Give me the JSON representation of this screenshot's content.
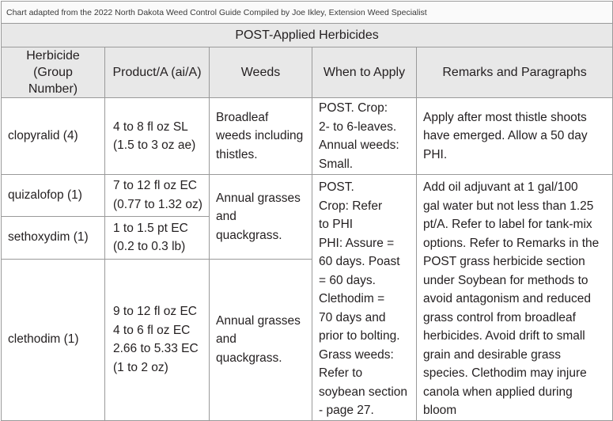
{
  "source_note": "Chart adapted from the 2022 North Dakota Weed Control Guide Compiled by Joe Ikley, Extension Weed Specialist",
  "section_title": "POST-Applied Herbicides",
  "headers": {
    "herbicide_line1": "Herbicide",
    "herbicide_line2": "(Group Number)",
    "product": "Product/A (ai/A)",
    "weeds": "Weeds",
    "when": "When to Apply",
    "remarks": "Remarks and Paragraphs"
  },
  "rows": {
    "clopyralid": {
      "herbicide": "clopyralid (4)",
      "product_line1": "4 to 8 fl oz SL",
      "product_line2": "(1.5 to 3 oz ae)",
      "weeds_line1": "Broadleaf",
      "weeds_line2": "weeds including",
      "weeds_line3": "thistles.",
      "when_line1": "POST. Crop:",
      "when_line2": "2- to 6-leaves.",
      "when_line3": "Annual weeds:",
      "when_line4": "Small.",
      "remarks_line1": "Apply after most thistle shoots",
      "remarks_line2": "have emerged. Allow a 50 day",
      "remarks_line3": "PHI."
    },
    "quizalofop": {
      "herbicide": "quizalofop (1)",
      "product_line1": "7 to 12 fl oz EC",
      "product_line2": "(0.77 to 1.32 oz)"
    },
    "sethoxydim": {
      "herbicide": "sethoxydim (1)",
      "product_line1": "1 to 1.5 pt EC",
      "product_line2": "(0.2 to 0.3 lb)"
    },
    "clethodim": {
      "herbicide": "clethodim (1)",
      "product_line1": "9 to 12 fl oz EC",
      "product_line2": "4 to 6 fl oz EC",
      "product_line3": "2.66 to 5.33 EC",
      "product_line4": "(1 to 2 oz)",
      "weeds_line1": "Annual grasses",
      "weeds_line2": "and quackgrass."
    },
    "grass_group": {
      "weeds_line1": "Annual grasses",
      "weeds_line2": "and quackgrass.",
      "when_lines": [
        "POST.",
        "Crop: Refer",
        "to PHI",
        "PHI: Assure =",
        "60 days. Poast",
        "= 60 days.",
        "Clethodim =",
        "70 days and",
        "prior to bolting.",
        "Grass weeds:",
        "Refer to",
        "soybean section",
        "- page 27."
      ],
      "remarks_lines": [
        "Add oil adjuvant at 1 gal/100",
        "gal water but not less than 1.25",
        "pt/A. Refer to label for tank-mix",
        "options. Refer to Remarks in the",
        "POST grass herbicide section",
        "under Soybean for methods to",
        "avoid antagonism and reduced",
        "grass control from broadleaf",
        "herbicides. Avoid drift to small",
        "grain and desirable grass",
        "species. Clethodim may injure",
        "canola when applied during",
        "bloom"
      ]
    }
  }
}
